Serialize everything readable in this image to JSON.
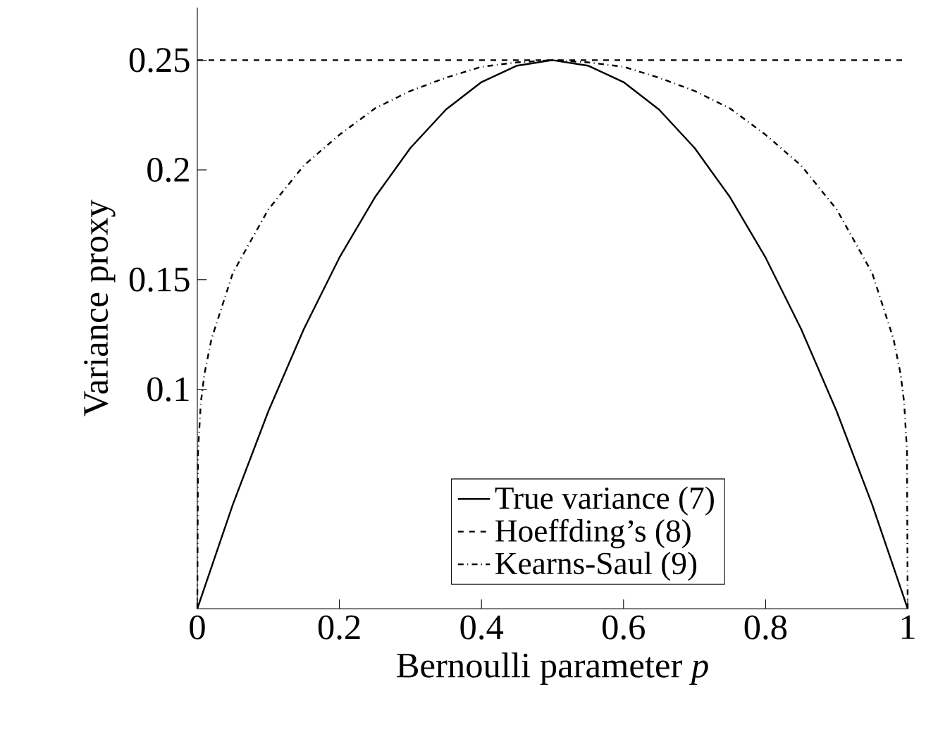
{
  "chart_data": {
    "type": "line",
    "xlabel": "Bernoulli parameter *p*",
    "ylabel": "Variance proxy",
    "xlim": [
      0,
      1
    ],
    "ylim": [
      0,
      0.274
    ],
    "xticks": [
      0,
      0.2,
      0.4,
      0.6,
      0.8,
      1
    ],
    "yticks": [
      0.1,
      0.15,
      0.2,
      0.25
    ],
    "legend": "bottom",
    "grid": false,
    "marker": "none",
    "series": [
      {
        "name": "True variance (7)",
        "color": "#000000",
        "line_style": "solid",
        "x": [
          0,
          0.05,
          0.1,
          0.15,
          0.2,
          0.25,
          0.3,
          0.35,
          0.4,
          0.45,
          0.5,
          0.55,
          0.6,
          0.65,
          0.7,
          0.75,
          0.8,
          0.85,
          0.9,
          0.95,
          1
        ],
        "values": [
          0,
          0.0475,
          0.09,
          0.1275,
          0.16,
          0.1875,
          0.21,
          0.2275,
          0.24,
          0.2475,
          0.25,
          0.2475,
          0.24,
          0.2275,
          0.21,
          0.1875,
          0.16,
          0.1275,
          0.09,
          0.0475,
          0
        ]
      },
      {
        "name": "Hoeffding’s (8)",
        "color": "#000000",
        "line_style": "dashed",
        "x": [
          0,
          1
        ],
        "values": [
          0.25,
          0.25
        ]
      },
      {
        "name": "Kearns-Saul (9)",
        "color": "#000000",
        "line_style": "dashdot",
        "x": [
          0,
          0.001,
          0.005,
          0.01,
          0.02,
          0.05,
          0.1,
          0.15,
          0.2,
          0.25,
          0.3,
          0.35,
          0.4,
          0.45,
          0.5,
          0.55,
          0.6,
          0.65,
          0.7,
          0.75,
          0.8,
          0.85,
          0.9,
          0.95,
          0.98,
          0.99,
          0.995,
          0.999,
          1
        ],
        "values": [
          0,
          0.072,
          0.094,
          0.107,
          0.123,
          0.153,
          0.182,
          0.202,
          0.216,
          0.228,
          0.236,
          0.242,
          0.247,
          0.249,
          0.25,
          0.249,
          0.247,
          0.242,
          0.236,
          0.228,
          0.216,
          0.202,
          0.182,
          0.153,
          0.123,
          0.107,
          0.094,
          0.072,
          0
        ]
      }
    ]
  }
}
